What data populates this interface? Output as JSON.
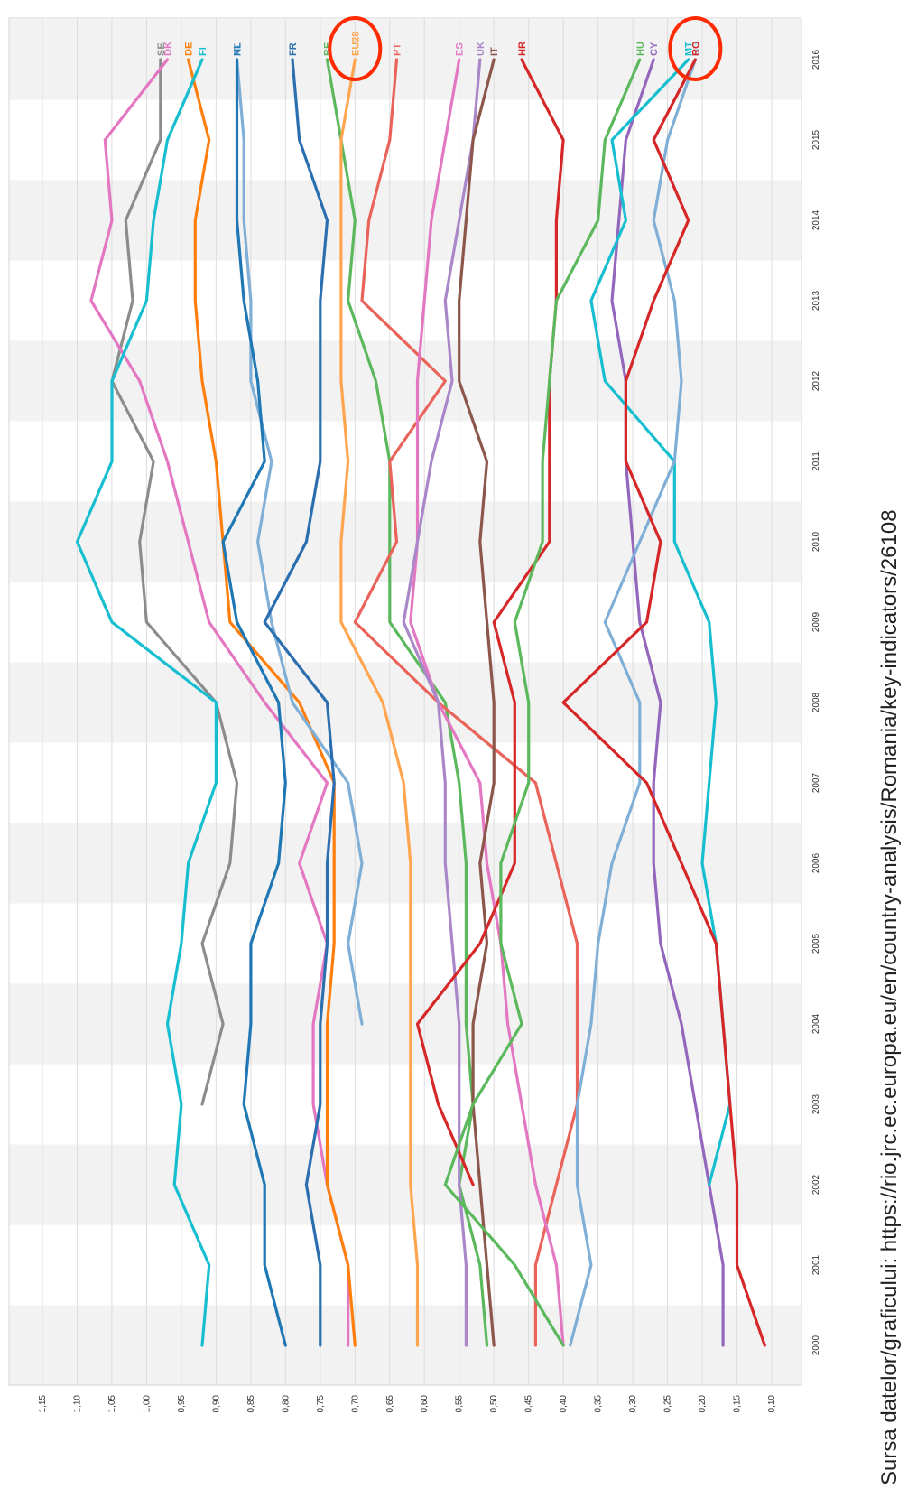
{
  "chart_data": {
    "type": "line",
    "title": "",
    "xlabel": "",
    "ylabel": "",
    "source": "Sursa datelor/graficului: https://rio.jrc.ec.europa.eu/en/country-analysis/Romania/key-indicators/26108",
    "x": [
      2000,
      2001,
      2002,
      2003,
      2004,
      2005,
      2006,
      2007,
      2008,
      2009,
      2010,
      2011,
      2012,
      2013,
      2014,
      2015,
      2016
    ],
    "x_tick_labels": [
      "2000",
      "2001",
      "2002",
      "2003",
      "2004",
      "2005",
      "2006",
      "2007",
      "2008",
      "2009",
      "2010",
      "2011",
      "2012",
      "2013",
      "2014",
      "2015",
      "2016"
    ],
    "y_tick_labels": [
      "1,15",
      "1,10",
      "1,05",
      "1,00",
      "0,95",
      "0,90",
      "0,85",
      "0,80",
      "0,75",
      "0,70",
      "0,65",
      "0,60",
      "0,55",
      "0,50",
      "0,45",
      "0,40",
      "0,35",
      "0,30",
      "0,25",
      "0,20",
      "0,15",
      "0,10"
    ],
    "y_ticks": [
      1.15,
      1.1,
      1.05,
      1.0,
      0.95,
      0.9,
      0.85,
      0.8,
      0.75,
      0.7,
      0.65,
      0.6,
      0.55,
      0.5,
      0.45,
      0.4,
      0.35,
      0.3,
      0.25,
      0.2,
      0.15,
      0.1
    ],
    "ylim": [
      0.08,
      1.16
    ],
    "orientation": "rotated-90",
    "grid": true,
    "alternating_band_shading": true,
    "legend": "labels at end of lines",
    "highlighted": [
      "EU28",
      "RO"
    ],
    "series": [
      {
        "name": "SE",
        "color": "#8c8c8c",
        "values": [
          null,
          null,
          null,
          0.92,
          0.89,
          0.92,
          0.88,
          0.87,
          0.9,
          1.0,
          1.01,
          0.99,
          1.05,
          1.02,
          1.03,
          0.98,
          0.98
        ]
      },
      {
        "name": "DK",
        "color": "#e377c2",
        "values": [
          0.71,
          0.71,
          0.74,
          0.76,
          0.76,
          0.74,
          0.78,
          0.74,
          0.83,
          0.91,
          0.94,
          0.97,
          1.01,
          1.08,
          1.05,
          1.06,
          0.97
        ]
      },
      {
        "name": "DE",
        "color": "#ff7f0e",
        "values": [
          0.7,
          0.71,
          0.74,
          0.74,
          0.74,
          0.73,
          0.73,
          0.73,
          0.78,
          0.88,
          0.89,
          0.9,
          0.92,
          0.93,
          0.93,
          0.91,
          0.94
        ]
      },
      {
        "name": "AT",
        "color": "#7faed6",
        "values": [
          null,
          null,
          null,
          null,
          0.69,
          0.71,
          0.69,
          0.71,
          0.79,
          0.82,
          0.84,
          0.82,
          0.85,
          0.85,
          0.86,
          0.86,
          0.87
        ]
      },
      {
        "name": "FI",
        "color": "#17becf",
        "values": [
          0.92,
          0.91,
          0.96,
          0.95,
          0.97,
          0.95,
          0.94,
          0.9,
          0.9,
          1.05,
          1.1,
          1.05,
          1.05,
          1.0,
          0.99,
          0.97,
          0.92
        ]
      },
      {
        "name": "NL",
        "color": "#1f77b4",
        "values": [
          0.8,
          0.83,
          0.83,
          0.86,
          0.85,
          0.85,
          0.81,
          0.8,
          0.81,
          0.87,
          0.89,
          0.83,
          0.84,
          0.86,
          0.87,
          0.87,
          0.87
        ]
      },
      {
        "name": "FR",
        "color": "#2c6fb0",
        "values": [
          0.75,
          0.75,
          0.77,
          0.75,
          0.75,
          0.74,
          0.74,
          0.73,
          0.74,
          0.83,
          0.77,
          0.75,
          0.75,
          0.75,
          0.74,
          0.78,
          0.79
        ]
      },
      {
        "name": "BE",
        "color": "#5cb85c",
        "values": [
          0.51,
          0.52,
          0.55,
          0.53,
          0.54,
          0.54,
          0.54,
          0.55,
          0.57,
          0.65,
          0.65,
          0.65,
          0.67,
          0.71,
          0.7,
          0.72,
          0.74
        ]
      },
      {
        "name": "EU28",
        "color": "#ffa54f",
        "values": [
          0.61,
          0.61,
          0.62,
          0.62,
          0.62,
          0.62,
          0.62,
          0.63,
          0.66,
          0.72,
          0.72,
          0.71,
          0.72,
          0.72,
          0.72,
          0.72,
          0.7
        ]
      },
      {
        "name": "PT",
        "color": "#e9635a",
        "values": [
          0.44,
          0.44,
          0.41,
          0.38,
          0.38,
          0.38,
          0.41,
          0.44,
          0.58,
          0.7,
          0.64,
          0.65,
          0.57,
          0.69,
          0.68,
          0.65,
          0.64
        ]
      },
      {
        "name": "ES",
        "color": "#e377c2",
        "values": [
          0.4,
          0.41,
          0.44,
          0.46,
          0.48,
          0.49,
          0.51,
          0.52,
          0.58,
          0.62,
          0.61,
          0.61,
          0.61,
          0.6,
          0.59,
          0.57,
          0.55
        ]
      },
      {
        "name": "UK",
        "color": "#a987c9",
        "values": [
          0.54,
          0.54,
          0.55,
          0.55,
          0.55,
          0.56,
          0.57,
          0.57,
          0.58,
          0.63,
          0.61,
          0.59,
          0.56,
          0.57,
          0.55,
          0.53,
          0.52
        ]
      },
      {
        "name": "IT",
        "color": "#8c564b",
        "values": [
          0.5,
          0.51,
          0.52,
          0.53,
          0.53,
          0.51,
          0.52,
          0.5,
          0.5,
          0.51,
          0.52,
          0.51,
          0.55,
          0.55,
          0.54,
          0.53,
          0.5
        ]
      },
      {
        "name": "HR",
        "color": "#d62728",
        "values": [
          null,
          null,
          0.53,
          0.58,
          0.61,
          0.52,
          0.47,
          0.47,
          0.47,
          0.5,
          0.42,
          0.42,
          0.42,
          0.41,
          0.41,
          0.4,
          0.46
        ]
      },
      {
        "name": "HU",
        "color": "#5cb85c",
        "values": [
          0.4,
          0.47,
          0.57,
          0.53,
          0.46,
          0.49,
          0.49,
          0.45,
          0.45,
          0.47,
          0.43,
          0.43,
          0.42,
          0.41,
          0.35,
          0.34,
          0.29
        ]
      },
      {
        "name": "CY",
        "color": "#9467bd",
        "values": [
          0.17,
          0.17,
          0.19,
          0.21,
          0.23,
          0.26,
          0.27,
          0.27,
          0.26,
          0.29,
          0.3,
          0.31,
          0.31,
          0.33,
          0.32,
          0.31,
          0.27
        ]
      },
      {
        "name": "MT",
        "color": "#17becf",
        "values": [
          null,
          null,
          0.19,
          0.16,
          0.17,
          0.18,
          0.2,
          0.19,
          0.18,
          0.19,
          0.24,
          0.24,
          0.34,
          0.36,
          0.31,
          0.33,
          0.22
        ]
      },
      {
        "name": "BG",
        "color": "#7faed6",
        "values": [
          0.39,
          0.36,
          0.38,
          0.38,
          0.36,
          0.35,
          0.33,
          0.29,
          0.29,
          0.34,
          0.29,
          0.24,
          0.23,
          0.24,
          0.27,
          0.25,
          0.21
        ]
      },
      {
        "name": "RO",
        "color": "#d62728",
        "values": [
          0.11,
          0.15,
          0.15,
          0.16,
          0.17,
          0.18,
          0.23,
          0.28,
          0.4,
          0.28,
          0.26,
          0.31,
          0.31,
          0.27,
          0.22,
          0.27,
          0.21
        ]
      }
    ]
  }
}
